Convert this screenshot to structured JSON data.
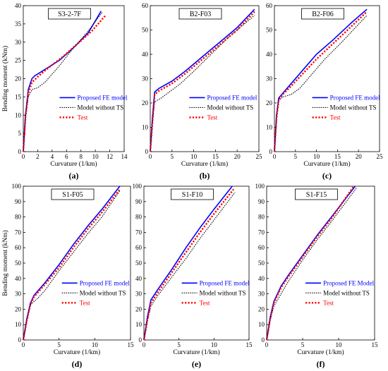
{
  "figure": {
    "ylabel": "Bending moment (kNm)",
    "xlabel": "Curvature (1/km)"
  },
  "series_styles": [
    {
      "key": "fe",
      "color": "#0000ff",
      "dash": "",
      "width": 1.6
    },
    {
      "key": "nots",
      "color": "#000000",
      "dash": "1.5,1.5",
      "width": 1.1
    },
    {
      "key": "test",
      "color": "#ff0000",
      "dash": "2.2,2.2",
      "width": 2.4
    }
  ],
  "chart_data": [
    {
      "type": "line",
      "letter": "(a)",
      "title": "S3-2-7F",
      "xlim": [
        0,
        14
      ],
      "xticks": [
        0,
        2,
        4,
        6,
        8,
        10,
        12,
        14
      ],
      "ylim": [
        0,
        40
      ],
      "yticks": [
        0,
        5,
        10,
        15,
        20,
        25,
        30,
        35,
        40
      ],
      "show_ylabel": true,
      "legend": [
        "Proposed FE model",
        "Model without TS",
        "Test"
      ],
      "series": [
        {
          "name": "Proposed FE model",
          "x": [
            0,
            0.3,
            0.7,
            1.2,
            1.6,
            3,
            5,
            7,
            9,
            10.8
          ],
          "y": [
            0,
            10,
            17,
            20,
            20.8,
            22.5,
            25,
            28.5,
            32.5,
            38.5
          ]
        },
        {
          "name": "Model without TS",
          "x": [
            0,
            0.3,
            0.7,
            1.2,
            2,
            3,
            5,
            7,
            9,
            11
          ],
          "y": [
            0,
            9.5,
            15,
            17,
            17.5,
            19,
            23.5,
            28.5,
            33,
            38.3
          ]
        },
        {
          "name": "Test",
          "x": [
            0,
            0.3,
            0.7,
            1.2,
            2,
            3.5,
            5.5,
            7.5,
            9.5,
            11.5
          ],
          "y": [
            0,
            9.5,
            16,
            19,
            20.5,
            23,
            26,
            29.5,
            33,
            37.5
          ]
        }
      ]
    },
    {
      "type": "line",
      "letter": "(b)",
      "title": "B2-F03",
      "xlim": [
        0,
        25
      ],
      "xticks": [
        0,
        5,
        10,
        15,
        20,
        25
      ],
      "ylim": [
        0,
        60
      ],
      "yticks": [
        0,
        10,
        20,
        30,
        40,
        50,
        60
      ],
      "show_ylabel": false,
      "legend": [
        "Proposed FE model",
        "Model without TS",
        "Test"
      ],
      "series": [
        {
          "name": "Proposed FE model",
          "x": [
            0,
            0.5,
            1,
            2,
            5,
            8,
            12,
            16,
            20,
            24
          ],
          "y": [
            0,
            14,
            24.5,
            26,
            29,
            33,
            39,
            45,
            51,
            58.5
          ]
        },
        {
          "name": "Model without TS",
          "x": [
            0,
            0.5,
            1,
            2.5,
            4,
            7,
            10,
            14,
            18,
            24
          ],
          "y": [
            0,
            12,
            20.5,
            22,
            24,
            28,
            33,
            40,
            47,
            56
          ]
        },
        {
          "name": "Test",
          "x": [
            0,
            0.5,
            1,
            2,
            5,
            8,
            12,
            16,
            20,
            24
          ],
          "y": [
            0,
            12,
            23.5,
            25,
            28,
            32,
            38,
            44,
            50,
            57.5
          ]
        }
      ]
    },
    {
      "type": "line",
      "letter": "(c)",
      "title": "B2-F06",
      "xlim": [
        0,
        25
      ],
      "xticks": [
        0,
        5,
        10,
        15,
        20,
        25
      ],
      "ylim": [
        0,
        60
      ],
      "yticks": [
        0,
        10,
        20,
        30,
        40,
        50,
        60
      ],
      "show_ylabel": false,
      "legend": [
        "Proposed FE model",
        "Model without TS",
        "Test"
      ],
      "series": [
        {
          "name": "Proposed FE model",
          "x": [
            0,
            0.5,
            1,
            2,
            4,
            7,
            10,
            14,
            18,
            22
          ],
          "y": [
            0,
            15,
            22,
            24,
            28,
            34,
            40,
            46,
            52.5,
            58.5
          ]
        },
        {
          "name": "Model without TS",
          "x": [
            0,
            0.5,
            1,
            2,
            4,
            6,
            9,
            12,
            16,
            22
          ],
          "y": [
            0,
            14,
            21,
            22.5,
            23.5,
            26,
            32,
            38,
            45,
            56
          ]
        },
        {
          "name": "Test",
          "x": [
            0,
            0.5,
            1,
            2,
            4,
            7,
            10,
            14,
            18,
            22
          ],
          "y": [
            0,
            14,
            21,
            23.5,
            27,
            32.5,
            38,
            44.5,
            51,
            57.5
          ]
        }
      ]
    },
    {
      "type": "line",
      "letter": "(d)",
      "title": "S1-F05",
      "xlim": [
        0,
        15
      ],
      "xticks": [
        0,
        5,
        10,
        15
      ],
      "ylim": [
        0,
        100
      ],
      "yticks": [
        0,
        10,
        20,
        30,
        40,
        50,
        60,
        70,
        80,
        90,
        100
      ],
      "show_ylabel": true,
      "legend": [
        "Proposed FE model",
        "Model without TS",
        "Test"
      ],
      "series": [
        {
          "name": "Proposed FE model",
          "x": [
            0,
            0.5,
            1,
            1.5,
            3,
            5,
            7,
            9,
            11,
            13.5
          ],
          "y": [
            0,
            14,
            24,
            29,
            37,
            49,
            62,
            74,
            85,
            100
          ]
        },
        {
          "name": "Model without TS",
          "x": [
            0,
            0.5,
            1,
            2,
            3,
            5,
            7,
            9,
            11,
            13.5
          ],
          "y": [
            0,
            13,
            23,
            27,
            32,
            45,
            57,
            69,
            80,
            97
          ]
        },
        {
          "name": "Test",
          "x": [
            0,
            0.5,
            1,
            1.5,
            3,
            5,
            7,
            9,
            11,
            13.5
          ],
          "y": [
            0,
            13,
            23,
            28,
            36,
            47,
            60,
            72,
            83,
            98
          ]
        }
      ]
    },
    {
      "type": "line",
      "letter": "(e)",
      "title": "S1-F10",
      "xlim": [
        0,
        15
      ],
      "xticks": [
        0,
        5,
        10,
        15
      ],
      "ylim": [
        0,
        100
      ],
      "yticks": [
        0,
        10,
        20,
        30,
        40,
        50,
        60,
        70,
        80,
        90,
        100
      ],
      "show_ylabel": false,
      "legend": [
        "Proposed FE model",
        "Model without TS",
        "Test"
      ],
      "series": [
        {
          "name": "Proposed FE model",
          "x": [
            0,
            0.5,
            1,
            2,
            4,
            6,
            8,
            10,
            12.6
          ],
          "y": [
            0,
            15,
            26,
            33,
            46,
            60,
            73,
            85,
            100
          ]
        },
        {
          "name": "Model without TS",
          "x": [
            0,
            0.5,
            1,
            2,
            4,
            6,
            8,
            10,
            13
          ],
          "y": [
            0,
            13,
            22,
            29,
            41,
            53,
            66,
            78,
            96
          ]
        },
        {
          "name": "Test",
          "x": [
            0,
            0.5,
            1,
            2,
            4,
            6,
            8,
            10,
            12.8
          ],
          "y": [
            0,
            13,
            24,
            31,
            44,
            57,
            70,
            82,
            98
          ]
        }
      ]
    },
    {
      "type": "line",
      "letter": "(f)",
      "title": "S1-F15",
      "xlim": [
        0,
        15
      ],
      "xticks": [
        0,
        5,
        10,
        15
      ],
      "ylim": [
        0,
        100
      ],
      "yticks": [
        0,
        10,
        20,
        30,
        40,
        50,
        60,
        70,
        80,
        90,
        100
      ],
      "show_ylabel": false,
      "legend": [
        "Proposed FE Model",
        "Model without TS",
        "Test"
      ],
      "series": [
        {
          "name": "Proposed FE Model",
          "x": [
            0,
            0.5,
            1,
            2,
            3,
            5,
            7,
            9,
            12.3
          ],
          "y": [
            0,
            15,
            25,
            35,
            42,
            55,
            68,
            80,
            100
          ]
        },
        {
          "name": "Model without TS",
          "x": [
            0,
            0.5,
            1,
            2,
            3,
            5,
            7,
            9,
            12.5
          ],
          "y": [
            0,
            13,
            22,
            30,
            38,
            52,
            65,
            77,
            99
          ]
        },
        {
          "name": "Test",
          "x": [
            0,
            0.5,
            1,
            2,
            3,
            5,
            7,
            9,
            12.1
          ],
          "y": [
            0,
            14,
            24,
            34,
            41,
            54,
            67,
            79,
            100
          ]
        }
      ]
    }
  ]
}
